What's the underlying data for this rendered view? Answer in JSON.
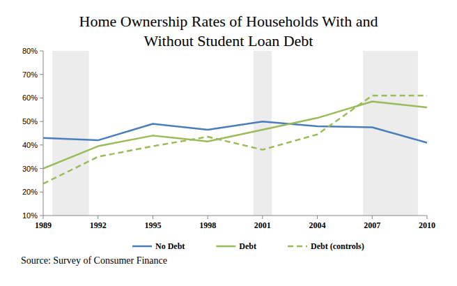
{
  "chart_data": {
    "type": "line",
    "title": "Home Ownership Rates of Households With and Without Student Loan Debt",
    "source": "Source: Survey of Consumer Finance",
    "x": [
      1989,
      1992,
      1995,
      1998,
      2001,
      2004,
      2007,
      2010
    ],
    "xlim": [
      1989,
      2010
    ],
    "xticks": [
      1989,
      1992,
      1995,
      1998,
      2001,
      2004,
      2007,
      2010
    ],
    "ylim": [
      10,
      80
    ],
    "yticks": [
      {
        "value": 10,
        "label": "10%"
      },
      {
        "value": 20,
        "label": "20%"
      },
      {
        "value": 30,
        "label": "30%"
      },
      {
        "value": 40,
        "label": "40%"
      },
      {
        "value": 50,
        "label": "50%"
      },
      {
        "value": 60,
        "label": "60%"
      },
      {
        "value": 70,
        "label": "70%"
      },
      {
        "value": 80,
        "label": "80%"
      }
    ],
    "grid": false,
    "legend": "bottom",
    "bands": [
      [
        1989.5,
        1991.5
      ],
      [
        2000.5,
        2001.5
      ],
      [
        2006.5,
        2009.5
      ]
    ],
    "series": [
      {
        "name": "No Debt",
        "color": "#4a7ebb",
        "line_style": "solid",
        "values": [
          43,
          42,
          49,
          46.5,
          50,
          48,
          47.5,
          41
        ]
      },
      {
        "name": "Debt",
        "color": "#9bbb59",
        "line_style": "solid",
        "values": [
          30,
          39.5,
          44,
          41.5,
          46.5,
          51.5,
          58.5,
          56
        ]
      },
      {
        "name": "Debt (controls)",
        "color": "#9bbb59",
        "line_style": "dashed",
        "values": [
          23.5,
          35,
          39.5,
          43.5,
          38,
          44.5,
          61,
          61
        ]
      }
    ]
  }
}
